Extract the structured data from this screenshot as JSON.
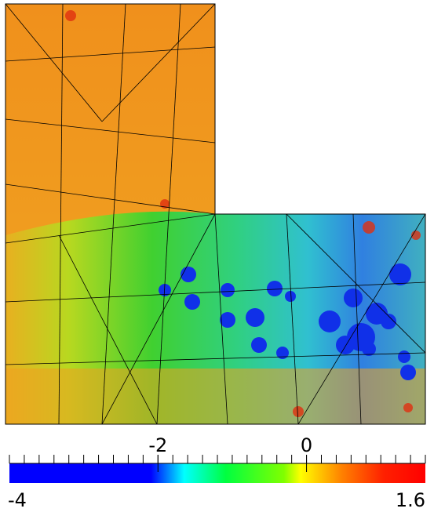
{
  "colorbar": {
    "range": [
      -4,
      1.6
    ],
    "ticks": [
      -2,
      0
    ],
    "minor_step": 0.2
  }
}
